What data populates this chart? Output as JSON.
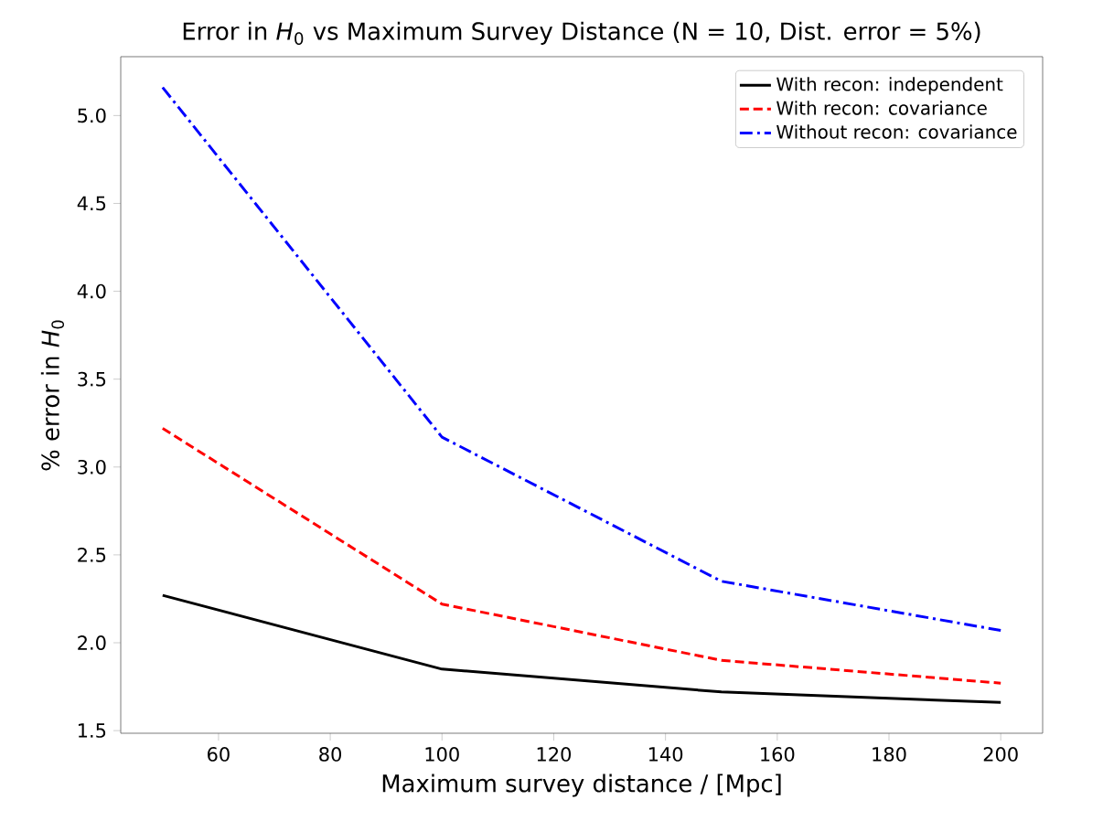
{
  "chart_data": {
    "type": "line",
    "title": "Error in *H*$_{0}$ vs Maximum Survey Distance (N = 10, Dist. error = 5%)",
    "xlabel": "Maximum survey distance / [Mpc]",
    "ylabel": "% error in *H*$_{0}$",
    "x": [
      50,
      100,
      150,
      200
    ],
    "series": [
      {
        "name": "With recon: independent",
        "color": "#000000",
        "line_style": "solid",
        "values": [
          2.27,
          1.85,
          1.72,
          1.66
        ]
      },
      {
        "name": "With recon: covariance",
        "color": "#ff0000",
        "line_style": "dashed",
        "values": [
          3.22,
          2.22,
          1.9,
          1.77
        ]
      },
      {
        "name": "Without recon: covariance",
        "color": "#0000ff",
        "line_style": "dashdot",
        "values": [
          5.16,
          3.17,
          2.35,
          2.07
        ]
      }
    ],
    "xlim": [
      42.5,
      207.5
    ],
    "ylim": [
      1.485,
      5.335
    ],
    "xticks": [
      60,
      80,
      100,
      120,
      140,
      160,
      180,
      200
    ],
    "yticks": [
      1.5,
      {
        "value": 2,
        "label": "2.0"
      },
      2.5,
      {
        "value": 3,
        "label": "3.0"
      },
      3.5,
      {
        "value": 4,
        "label": "4.0"
      },
      4.5,
      {
        "value": 5,
        "label": "5.0"
      }
    ],
    "grid": false,
    "legend": "top right",
    "marker": "none"
  }
}
